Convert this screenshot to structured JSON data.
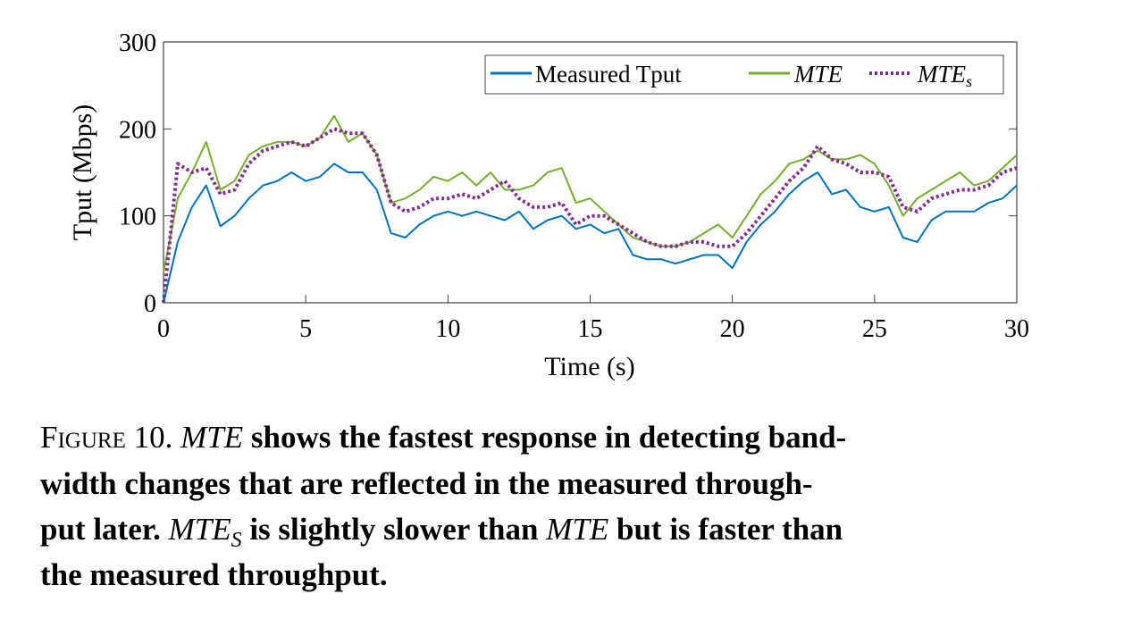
{
  "chart_data": {
    "type": "line",
    "xlabel": "Time (s)",
    "ylabel": "Tput (Mbps)",
    "xlim": [
      0,
      30
    ],
    "ylim": [
      0,
      300
    ],
    "xticks": [
      0,
      5,
      10,
      15,
      20,
      25,
      30
    ],
    "yticks": [
      0,
      100,
      200,
      300
    ],
    "grid": false,
    "legend_position": "top-right",
    "x": [
      0,
      0.5,
      1,
      1.5,
      2,
      2.5,
      3,
      3.5,
      4,
      4.5,
      5,
      5.5,
      6,
      6.5,
      7,
      7.5,
      8,
      8.5,
      9,
      9.5,
      10,
      10.5,
      11,
      11.5,
      12,
      12.5,
      13,
      13.5,
      14,
      14.5,
      15,
      15.5,
      16,
      16.5,
      17,
      17.5,
      18,
      18.5,
      19,
      19.5,
      20,
      20.5,
      21,
      21.5,
      22,
      22.5,
      23,
      23.5,
      24,
      24.5,
      25,
      25.5,
      26,
      26.5,
      27,
      27.5,
      28,
      28.5,
      29,
      29.5,
      30
    ],
    "series": [
      {
        "name": "Measured Tput",
        "color": "#0072BD",
        "style": "solid",
        "values": [
          0,
          70,
          110,
          135,
          88,
          100,
          120,
          135,
          140,
          150,
          140,
          145,
          160,
          150,
          150,
          130,
          80,
          75,
          90,
          100,
          105,
          100,
          105,
          100,
          95,
          105,
          85,
          95,
          100,
          85,
          90,
          80,
          85,
          55,
          50,
          50,
          45,
          50,
          55,
          55,
          40,
          70,
          90,
          105,
          125,
          140,
          150,
          125,
          130,
          110,
          105,
          110,
          75,
          70,
          95,
          105,
          105,
          105,
          115,
          120,
          135
        ]
      },
      {
        "name": "MTE",
        "color": "#77AC30",
        "style": "solid",
        "values": [
          35,
          120,
          150,
          185,
          130,
          140,
          170,
          180,
          185,
          185,
          180,
          190,
          215,
          185,
          195,
          170,
          115,
          120,
          130,
          145,
          140,
          150,
          135,
          150,
          130,
          130,
          135,
          150,
          155,
          115,
          120,
          105,
          90,
          75,
          70,
          65,
          65,
          70,
          80,
          90,
          75,
          100,
          125,
          140,
          160,
          165,
          175,
          165,
          165,
          170,
          160,
          135,
          100,
          120,
          130,
          140,
          150,
          135,
          140,
          155,
          170
        ]
      },
      {
        "name": "MTE",
        "subscript": "s",
        "color": "#7E2F8E",
        "style": "dotted",
        "values": [
          0,
          160,
          150,
          155,
          125,
          130,
          160,
          175,
          180,
          185,
          180,
          190,
          200,
          195,
          195,
          170,
          115,
          105,
          110,
          120,
          120,
          125,
          120,
          130,
          140,
          120,
          110,
          110,
          115,
          90,
          100,
          100,
          90,
          80,
          70,
          65,
          65,
          70,
          70,
          65,
          65,
          80,
          100,
          120,
          140,
          155,
          180,
          165,
          160,
          150,
          150,
          145,
          110,
          105,
          120,
          125,
          130,
          130,
          135,
          150,
          155
        ]
      }
    ]
  },
  "caption": {
    "figure_label": "Figure 10.",
    "line1_a": "MTE",
    "line1_b": " shows the fastest response in detecting band-",
    "line2": "width changes that are reflected in the measured through-",
    "line3_a": "put later. ",
    "line3_b": "MTE",
    "line3_sub": "S",
    "line3_c": " is slightly slower than ",
    "line3_d": "MTE",
    "line3_e": " but is faster than",
    "line4": "the measured throughput."
  }
}
